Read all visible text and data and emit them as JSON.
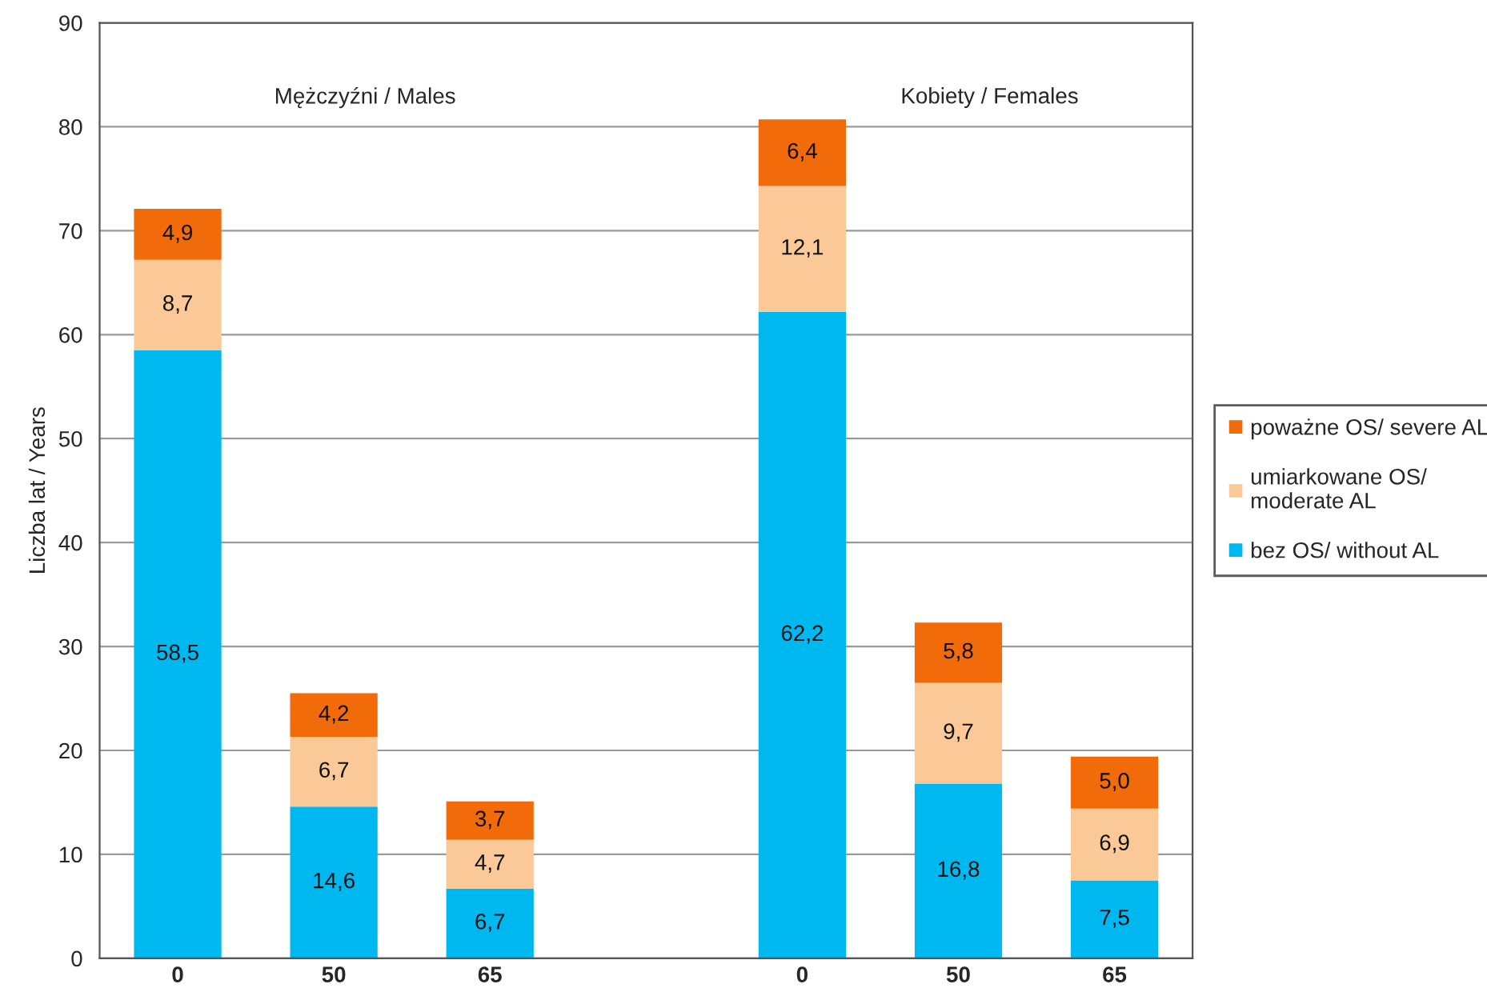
{
  "chart_data": {
    "type": "bar",
    "stacked": true,
    "ylabel": "Liczba lat / Years",
    "categories": [
      "0",
      "50",
      "65",
      null,
      "0",
      "50",
      "65"
    ],
    "series": [
      {
        "name": "bez OS/ without AL",
        "color": "#00b8f0",
        "values": [
          58.5,
          14.6,
          6.7,
          null,
          62.2,
          16.8,
          7.5
        ],
        "value_labels": [
          "58,5",
          "14,6",
          "6,7",
          null,
          "62,2",
          "16,8",
          "7,5"
        ]
      },
      {
        "name": "umiarkowane OS/\nmoderate AL",
        "color": "#fbc898",
        "values": [
          8.7,
          6.7,
          4.7,
          null,
          12.1,
          9.7,
          6.9
        ],
        "value_labels": [
          "8,7",
          "6,7",
          "4,7",
          null,
          "12,1",
          "9,7",
          "6,9"
        ]
      },
      {
        "name": "poważne OS/ severe AL",
        "color": "#f26b0a",
        "values": [
          4.9,
          4.2,
          3.7,
          null,
          6.4,
          5.8,
          5.0
        ],
        "value_labels": [
          "4,9",
          "4,2",
          "3,7",
          null,
          "6,4",
          "5,8",
          "5,0"
        ]
      }
    ],
    "annotations": [
      "Mężczyźni / Males",
      "Kobiety / Females"
    ],
    "ylim": [
      0,
      90
    ],
    "yticks": [
      0,
      10,
      20,
      30,
      40,
      50,
      60,
      70,
      80,
      90
    ],
    "grid": "y",
    "legend": "right"
  }
}
